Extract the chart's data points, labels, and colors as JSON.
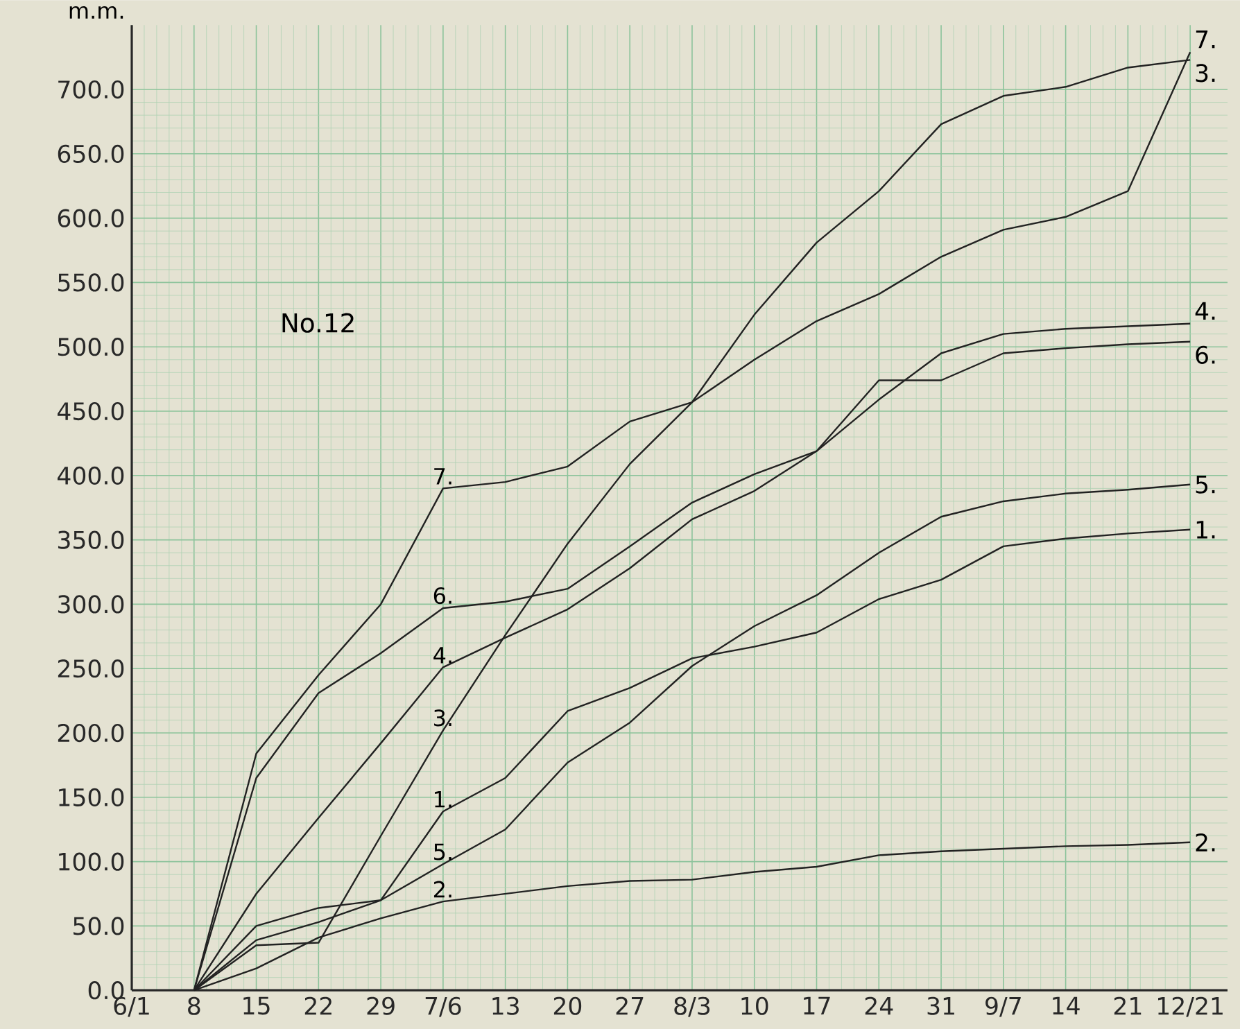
{
  "chart_data": {
    "type": "line",
    "title": "No.12",
    "ylabel": "m.m.",
    "categories": [
      "6/1",
      "8",
      "15",
      "22",
      "29",
      "7/6",
      "13",
      "20",
      "27",
      "8/3",
      "10",
      "17",
      "24",
      "31",
      "9/7",
      "14",
      "21",
      "12/21"
    ],
    "series": [
      {
        "name": "1.",
        "color": "#222222",
        "values": [
          null,
          0,
          39,
          53,
          70,
          139,
          165,
          217,
          235,
          258,
          267,
          278,
          304,
          319,
          345,
          351,
          355,
          358
        ]
      },
      {
        "name": "2.",
        "color": "#222222",
        "values": [
          null,
          0,
          17,
          41,
          56,
          69,
          75,
          81,
          85,
          86,
          92,
          96,
          105,
          108,
          110,
          112,
          113,
          115
        ]
      },
      {
        "name": "3.",
        "color": "#222222",
        "values": [
          null,
          0,
          35,
          37,
          120,
          202,
          276,
          347,
          409,
          457,
          525,
          581,
          621,
          673,
          695,
          702,
          717,
          723
        ]
      },
      {
        "name": "4.",
        "color": "#222222",
        "values": [
          null,
          0,
          75,
          134,
          192,
          251,
          274,
          296,
          328,
          366,
          388,
          419,
          459,
          495,
          510,
          514,
          516,
          518
        ]
      },
      {
        "name": "5.",
        "color": "#222222",
        "values": [
          null,
          0,
          50,
          64,
          70,
          98,
          125,
          177,
          208,
          252,
          283,
          307,
          340,
          368,
          380,
          386,
          389,
          393
        ]
      },
      {
        "name": "6.",
        "color": "#222222",
        "values": [
          null,
          0,
          165,
          231,
          262,
          297,
          302,
          312,
          345,
          379,
          401,
          419,
          474,
          474,
          495,
          499,
          502,
          504
        ]
      },
      {
        "name": "7.",
        "color": "#222222",
        "values": [
          null,
          0,
          184,
          245,
          300,
          390,
          395,
          407,
          442,
          457,
          490,
          520,
          541,
          570,
          591,
          601,
          621,
          729
        ]
      }
    ],
    "ylim": [
      0,
      750
    ],
    "yticks": [
      {
        "value": 0,
        "label": "0.0"
      },
      {
        "value": 50,
        "label": "50.0"
      },
      {
        "value": 100,
        "label": "100.0"
      },
      {
        "value": 150,
        "label": "150.0"
      },
      {
        "value": 200,
        "label": "200.0"
      },
      {
        "value": 250,
        "label": "250.0"
      },
      {
        "value": 300,
        "label": "300.0"
      },
      {
        "value": 350,
        "label": "350.0"
      },
      {
        "value": 400,
        "label": "400.0"
      },
      {
        "value": 450,
        "label": "450.0"
      },
      {
        "value": 500,
        "label": "500.0"
      },
      {
        "value": 550,
        "label": "550.0"
      },
      {
        "value": 600,
        "label": "600.0"
      },
      {
        "value": 650,
        "label": "650.0"
      },
      {
        "value": 700,
        "label": "700.0"
      }
    ],
    "grid": true,
    "line_style": "solid"
  }
}
